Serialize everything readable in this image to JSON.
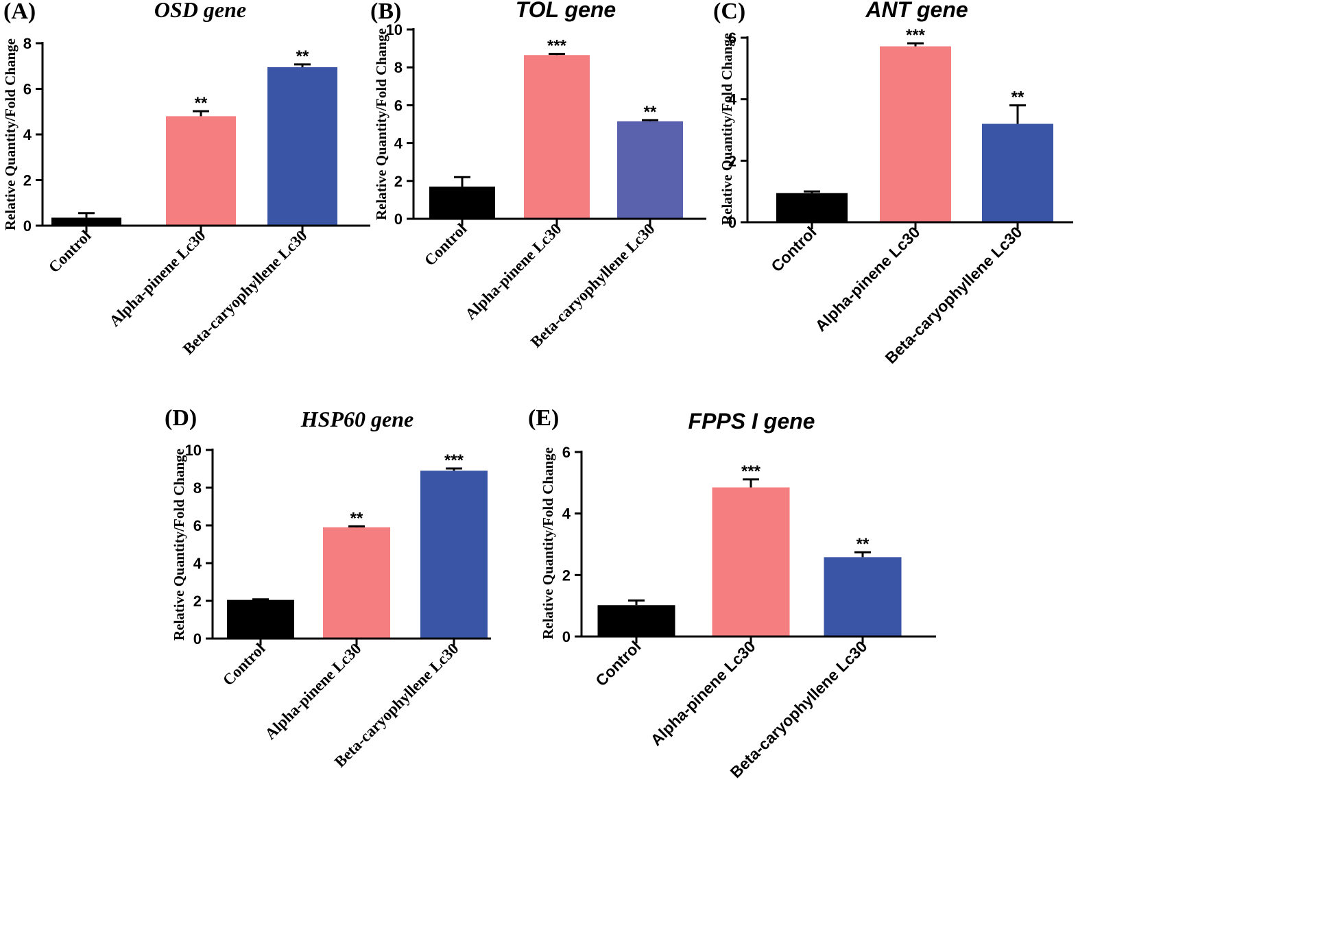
{
  "figure": {
    "colors": {
      "control": "#000000",
      "alpha": "#f47e80",
      "beta": "#3a55a5",
      "beta_b": "#5a62ae",
      "axis": "#000000"
    }
  },
  "chart_data": [
    {
      "panel": "(A)",
      "type": "bar",
      "title": "OSD gene",
      "ylabel": "Relative Quantity/Fold Change",
      "xlabel": "",
      "categories": [
        "Control",
        "Alpha-pinene Lc30",
        "Beta-caryophyllene Lc30"
      ],
      "values": [
        0.35,
        4.8,
        6.95
      ],
      "errors": [
        0.2,
        0.22,
        0.12
      ],
      "significance": [
        "",
        "**",
        "**"
      ],
      "ylim": [
        0,
        8
      ],
      "yticks": [
        0,
        2,
        4,
        6,
        8
      ],
      "grid": false
    },
    {
      "panel": "(B)",
      "type": "bar",
      "title": "TOL gene",
      "ylabel": "Relative Quantity/Fold Change",
      "xlabel": "",
      "categories": [
        "Control",
        "Alpha-pinene Lc30",
        "Beta-caryophyllene Lc30"
      ],
      "values": [
        1.7,
        8.65,
        5.15
      ],
      "errors": [
        0.5,
        0.06,
        0.06
      ],
      "significance": [
        "",
        "***",
        "**"
      ],
      "ylim": [
        0,
        10
      ],
      "yticks": [
        0,
        2,
        4,
        6,
        8,
        10
      ],
      "grid": false
    },
    {
      "panel": "(C)",
      "type": "bar",
      "title": "ANT gene",
      "ylabel": "Relative Quantity/Fold Change",
      "xlabel": "",
      "categories": [
        "Control",
        "Alpha-pinene Lc30",
        "Beta-caryophyllene Lc30"
      ],
      "values": [
        0.95,
        5.72,
        3.2
      ],
      "errors": [
        0.05,
        0.1,
        0.6
      ],
      "significance": [
        "",
        "***",
        "**"
      ],
      "ylim": [
        0,
        6
      ],
      "yticks": [
        0,
        2,
        4,
        6
      ],
      "grid": false
    },
    {
      "panel": "(D)",
      "type": "bar",
      "title": "HSP60 gene",
      "ylabel": "Relative Quantity/Fold Change",
      "xlabel": "",
      "categories": [
        "Control",
        "Alpha-pinene Lc30",
        "Beta-caryophyllene Lc30"
      ],
      "values": [
        2.05,
        5.9,
        8.9
      ],
      "errors": [
        0.03,
        0.05,
        0.12
      ],
      "significance": [
        "",
        "**",
        "***"
      ],
      "ylim": [
        0,
        10
      ],
      "yticks": [
        0,
        2,
        4,
        6,
        8,
        10
      ],
      "grid": false
    },
    {
      "panel": "(E)",
      "type": "bar",
      "title": "FPPS I gene",
      "ylabel": "Relative Quantity/Fold Change",
      "xlabel": "",
      "categories": [
        "Control",
        "Alpha-pinene Lc30",
        "Beta-caryophyllene Lc30"
      ],
      "values": [
        1.02,
        4.85,
        2.58
      ],
      "errors": [
        0.15,
        0.26,
        0.16
      ],
      "significance": [
        "",
        "***",
        "**"
      ],
      "ylim": [
        0,
        6
      ],
      "yticks": [
        0,
        2,
        4,
        6
      ],
      "grid": false
    }
  ]
}
